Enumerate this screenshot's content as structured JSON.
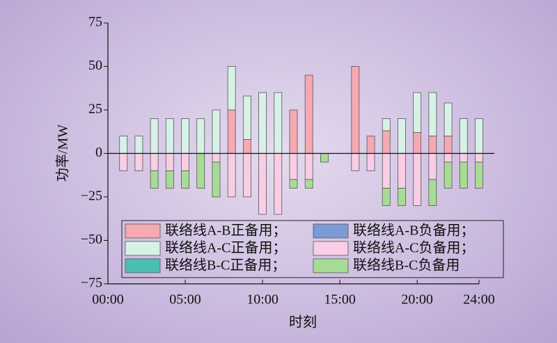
{
  "chart_data": {
    "type": "bar",
    "stacked": true,
    "x_label": "时刻",
    "y_label": "功率/MW",
    "x": [
      1,
      2,
      3,
      4,
      5,
      6,
      7,
      8,
      9,
      10,
      11,
      12,
      13,
      14,
      15,
      16,
      17,
      18,
      19,
      20,
      21,
      22,
      23,
      24
    ],
    "xlim": [
      0,
      24
    ],
    "xticks": [
      {
        "value": 0,
        "label": "00:00"
      },
      {
        "value": 5,
        "label": "05:00"
      },
      {
        "value": 10,
        "label": "10:00"
      },
      {
        "value": 15,
        "label": "15:00"
      },
      {
        "value": 20,
        "label": "20:00"
      },
      {
        "value": 24,
        "label": "24:00"
      }
    ],
    "ylim": [
      -75,
      75
    ],
    "yticks": [
      {
        "value": -75,
        "label": "−75"
      },
      {
        "value": -50,
        "label": "−50"
      },
      {
        "value": -25,
        "label": "−25"
      },
      0,
      25,
      50,
      75
    ],
    "series": [
      {
        "name": "联络线A-B正备用；",
        "color": "#f4a9b3",
        "values": [
          0,
          0,
          0,
          0,
          0,
          0,
          0,
          25,
          8,
          0,
          0,
          25,
          45,
          0,
          0,
          50,
          10,
          13,
          0,
          12,
          10,
          10,
          0,
          0
        ]
      },
      {
        "name": "联络线A-B负备用；",
        "color": "#7c9ad6",
        "values": [
          0,
          0,
          0,
          0,
          0,
          0,
          0,
          0,
          0,
          0,
          0,
          0,
          0,
          0,
          0,
          0,
          0,
          0,
          0,
          0,
          0,
          0,
          0,
          0
        ]
      },
      {
        "name": "联络线A-C正备用；",
        "color": "#d7f1e6",
        "values": [
          10,
          10,
          20,
          20,
          20,
          20,
          25,
          25,
          25,
          35,
          35,
          0,
          0,
          0,
          0,
          0,
          0,
          7,
          20,
          23,
          25,
          19,
          20,
          20
        ]
      },
      {
        "name": "联络线A-C负备用；",
        "color": "#f8cde5",
        "values": [
          -10,
          -10,
          -10,
          -10,
          -10,
          0,
          -5,
          -25,
          -25,
          -35,
          -35,
          -15,
          -15,
          0,
          0,
          -10,
          -10,
          -20,
          -20,
          -30,
          -15,
          -5,
          -5,
          -5
        ]
      },
      {
        "name": "联络线B-C正备用；",
        "color": "#4dbfb1",
        "values": [
          0,
          0,
          0,
          0,
          0,
          0,
          0,
          0,
          0,
          0,
          0,
          0,
          0,
          0,
          0,
          0,
          0,
          0,
          0,
          0,
          0,
          0,
          0,
          0
        ]
      },
      {
        "name": "联络线B-C负备用",
        "color": "#a7dc95",
        "values": [
          0,
          0,
          -10,
          -10,
          -10,
          -20,
          -20,
          0,
          0,
          0,
          0,
          -5,
          -5,
          -5,
          0,
          0,
          0,
          -10,
          -10,
          0,
          -15,
          -15,
          -15,
          -15
        ]
      }
    ]
  }
}
